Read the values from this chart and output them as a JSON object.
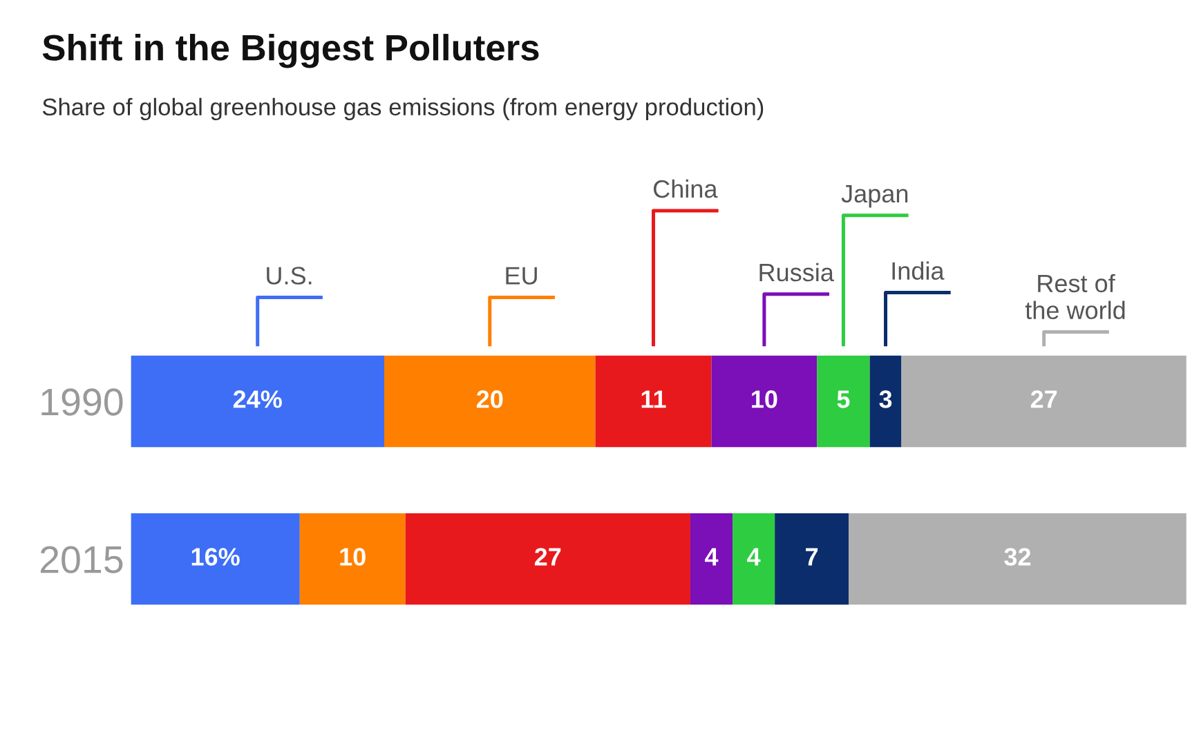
{
  "chart_data": {
    "type": "bar",
    "orientation": "horizontal",
    "stacked": true,
    "title": "Shift in the Biggest Polluters",
    "subtitle": "Share of global greenhouse gas emissions (from energy production)",
    "categories": [
      "1990",
      "2015"
    ],
    "series": [
      {
        "name": "U.S.",
        "color": "#3d6ef5",
        "values": [
          24,
          16
        ],
        "value_labels": [
          "24%",
          "16%"
        ]
      },
      {
        "name": "EU",
        "color": "#ff8000",
        "values": [
          20,
          10
        ],
        "value_labels": [
          "20",
          "10"
        ]
      },
      {
        "name": "China",
        "color": "#e8191c",
        "values": [
          11,
          27
        ],
        "value_labels": [
          "11",
          "27"
        ]
      },
      {
        "name": "Russia",
        "color": "#7b0fb8",
        "values": [
          10,
          4
        ],
        "value_labels": [
          "10",
          "4"
        ]
      },
      {
        "name": "Japan",
        "color": "#2ecc40",
        "values": [
          5,
          4
        ],
        "value_labels": [
          "5",
          "4"
        ]
      },
      {
        "name": "India",
        "color": "#0b2d6b",
        "values": [
          3,
          7
        ],
        "value_labels": [
          "3",
          "7"
        ]
      },
      {
        "name": "Rest of\nthe world",
        "color": "#b0b0b0",
        "values": [
          27,
          32
        ],
        "value_labels": [
          "27",
          "32"
        ]
      }
    ],
    "legend": false,
    "grid": false,
    "tick_labels": "y"
  }
}
